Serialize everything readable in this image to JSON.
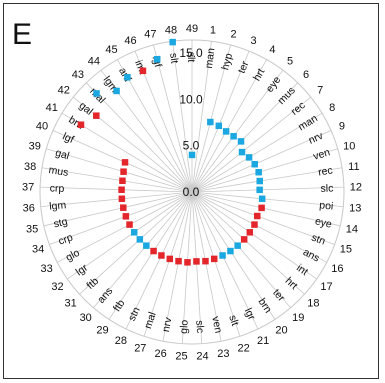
{
  "panel_label": "E",
  "colors": {
    "red": "#e3262b",
    "blue": "#1ba8e0",
    "grid": "#c8c8c8",
    "axis": "#999999"
  },
  "chart_data": {
    "type": "scatter",
    "subtype": "polar",
    "panel": "E",
    "radial_axis": {
      "ticks": [
        0.0,
        5.0,
        10.0,
        15.0
      ],
      "tick_labels": [
        "0.0",
        "5.0",
        "10.0",
        "15.0"
      ],
      "range": [
        0,
        15
      ]
    },
    "categories": [
      "1",
      "2",
      "3",
      "4",
      "5",
      "6",
      "7",
      "8",
      "9",
      "10",
      "11",
      "12",
      "13",
      "14",
      "15",
      "16",
      "17",
      "18",
      "19",
      "20",
      "21",
      "22",
      "23",
      "24",
      "25",
      "26",
      "27",
      "28",
      "29",
      "30",
      "31",
      "32",
      "33",
      "34",
      "35",
      "36",
      "37",
      "38",
      "39",
      "40",
      "41",
      "42",
      "43",
      "44",
      "45",
      "46",
      "47",
      "48",
      "49"
    ],
    "labels": [
      "man",
      "hyp",
      "ter",
      "hrt",
      "eye",
      "mus",
      "rec",
      "man",
      "nrv",
      "ven",
      "rec",
      "slc",
      "poi",
      "eye",
      "stn",
      "ans",
      "int",
      "hrt",
      "ter",
      "brn",
      "lgr",
      "slt",
      "ven",
      "slc",
      "glo",
      "nrv",
      "mal",
      "stn",
      "ftb",
      "ans",
      "ftb",
      "lgr",
      "glo",
      "crp",
      "stg",
      "lgm",
      "crp",
      "mus",
      "gal",
      "lgf",
      "brn",
      "gal",
      "mal",
      "lgm",
      "anf",
      "imt",
      "lgf",
      "slt",
      "slt"
    ],
    "values": [
      0.0,
      7.8,
      7.7,
      7.5,
      7.5,
      7.6,
      6.9,
      7.2,
      7.4,
      7.5,
      7.4,
      7.3,
      7.6,
      7.7,
      7.5,
      7.6,
      7.6,
      7.6,
      7.6,
      7.6,
      7.6,
      7.6,
      7.6,
      7.5,
      7.6,
      7.6,
      7.6,
      7.6,
      7.6,
      7.6,
      7.6,
      7.6,
      7.6,
      7.6,
      7.6,
      7.6,
      7.6,
      7.6,
      7.7,
      7.9,
      14.0,
      13.2,
      14.8,
      13.6,
      14.2,
      14.1,
      14.8,
      16.3,
      4.0
    ],
    "point_colors": [
      "",
      "blue",
      "blue",
      "blue",
      "blue",
      "blue",
      "blue",
      "blue",
      "blue",
      "blue",
      "blue",
      "blue",
      "blue",
      "red",
      "red",
      "red",
      "red",
      "red",
      "blue",
      "blue",
      "blue",
      "red",
      "red",
      "red",
      "red",
      "red",
      "red",
      "red",
      "red",
      "blue",
      "blue",
      "blue",
      "red",
      "red",
      "red",
      "red",
      "red",
      "red",
      "red",
      "red",
      "red",
      "red",
      "blue",
      "blue",
      "blue",
      "red",
      "blue",
      "blue",
      "blue"
    ]
  }
}
